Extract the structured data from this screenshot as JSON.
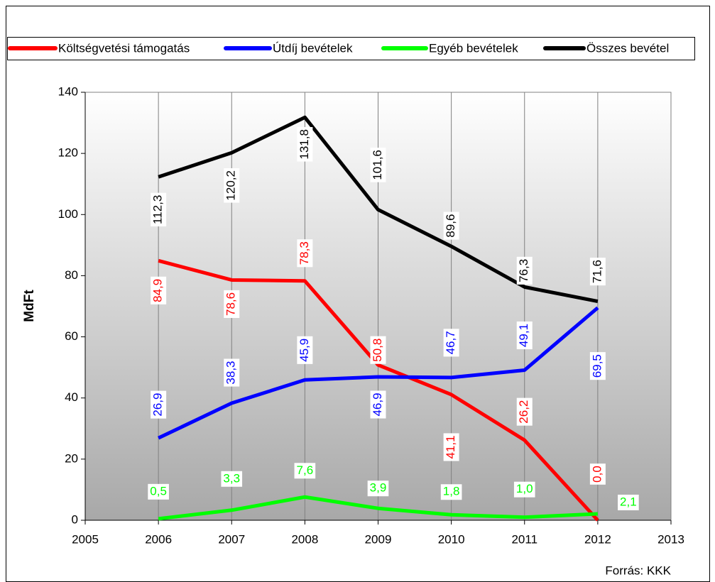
{
  "chart_data": {
    "type": "line",
    "x": [
      2006,
      2007,
      2008,
      2009,
      2010,
      2011,
      2012
    ],
    "series": [
      {
        "name": "Költségvetési támogatás",
        "color": "#ff0000",
        "values": [
          84.9,
          78.6,
          78.3,
          50.8,
          41.1,
          26.2,
          0
        ],
        "value_labels": [
          "84,9",
          "78,6",
          "78,3",
          "50,8",
          "41,1",
          "26,2",
          "0,0"
        ]
      },
      {
        "name": "Útdíj bevételek",
        "color": "#0000ff",
        "values": [
          26.9,
          38.3,
          45.9,
          46.9,
          46.7,
          49.1,
          69.5
        ],
        "value_labels": [
          "26,9",
          "38,3",
          "45,9",
          "46,9",
          "46,7",
          "49,1",
          "69,5"
        ]
      },
      {
        "name": "Egyéb bevételek",
        "color": "#00ff00",
        "values": [
          0.5,
          3.3,
          7.6,
          3.9,
          1.8,
          1.0,
          2.1
        ],
        "value_labels": [
          "0,5",
          "3,3",
          "7,6",
          "3,9",
          "1,8",
          "1,0",
          "2,1"
        ]
      },
      {
        "name": "Összes bevétel",
        "color": "#000000",
        "values": [
          112.3,
          120.2,
          131.8,
          101.6,
          89.6,
          76.3,
          71.6
        ],
        "value_labels": [
          "112,3",
          "120,2",
          "131,8",
          "101,6",
          "89,6",
          "76,3",
          "71,6"
        ]
      }
    ],
    "y_label": "MdFt",
    "xlim": [
      2005,
      2013
    ],
    "xticks": [
      2005,
      2006,
      2007,
      2008,
      2009,
      2010,
      2011,
      2012,
      2013
    ],
    "ylim": [
      0,
      140
    ],
    "yticks": [
      0,
      20,
      40,
      60,
      80,
      100,
      120,
      140
    ],
    "grid": "vertical",
    "legend": "top",
    "source": "Forrás: KKK"
  }
}
